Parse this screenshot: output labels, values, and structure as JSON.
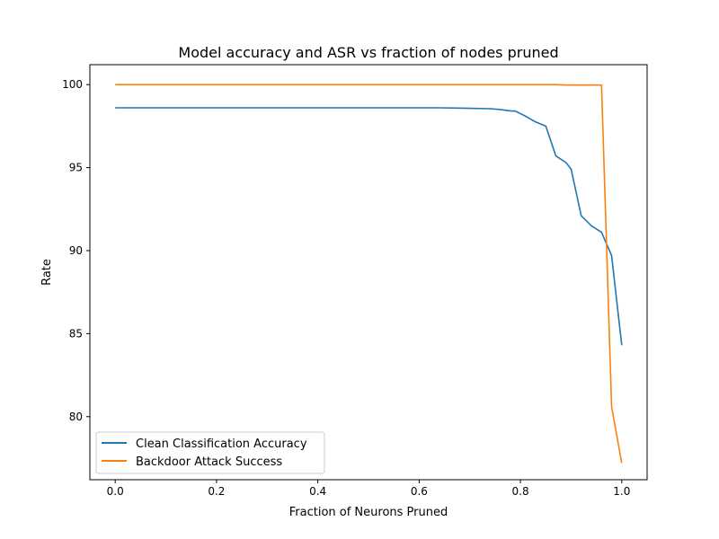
{
  "chart_data": {
    "type": "line",
    "title": "Model accuracy and ASR vs fraction of nodes pruned",
    "xlabel": "Fraction of Neurons Pruned",
    "ylabel": "Rate",
    "xlim": [
      -0.05,
      1.05
    ],
    "ylim": [
      76.2,
      101.2
    ],
    "xticks": [
      0.0,
      0.2,
      0.4,
      0.6,
      0.8,
      1.0
    ],
    "xtick_labels": [
      "0.0",
      "0.2",
      "0.4",
      "0.6",
      "0.8",
      "1.0"
    ],
    "yticks": [
      80,
      85,
      90,
      95,
      100
    ],
    "ytick_labels": [
      "80",
      "85",
      "90",
      "95",
      "100"
    ],
    "grid": false,
    "legend_position": "lower-left",
    "series": [
      {
        "name": "Clean Classification Accuracy",
        "color": "#1f77b4",
        "x": [
          0.0,
          0.2,
          0.4,
          0.6,
          0.64,
          0.7,
          0.74,
          0.76,
          0.78,
          0.79,
          0.81,
          0.83,
          0.85,
          0.87,
          0.89,
          0.9,
          0.92,
          0.94,
          0.96,
          0.98,
          1.0
        ],
        "y": [
          98.6,
          98.6,
          98.6,
          98.6,
          98.6,
          98.57,
          98.55,
          98.5,
          98.42,
          98.4,
          98.1,
          97.75,
          97.5,
          95.7,
          95.3,
          94.9,
          92.1,
          91.5,
          91.1,
          89.7,
          84.3
        ]
      },
      {
        "name": "Backdoor Attack Success",
        "color": "#ff7f0e",
        "x": [
          0.0,
          0.2,
          0.4,
          0.6,
          0.8,
          0.87,
          0.89,
          0.92,
          0.96,
          0.98,
          1.0
        ],
        "y": [
          100.0,
          100.0,
          100.0,
          100.0,
          100.0,
          100.0,
          99.97,
          99.97,
          99.97,
          80.6,
          77.2
        ]
      }
    ]
  }
}
